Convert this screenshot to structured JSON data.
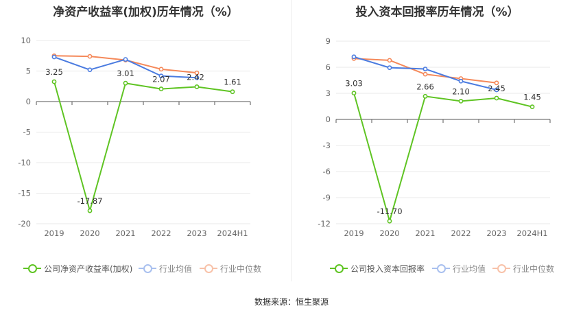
{
  "source": "数据来源：恒生聚源",
  "colors": {
    "company": "#5fc423",
    "average": "#4a7be0",
    "median": "#f5895a",
    "grid": "#e8e8e8",
    "axis": "#555555"
  },
  "chart_data": [
    {
      "type": "line",
      "title": "净资产收益率(加权)历年情况（%）",
      "categories": [
        "2019",
        "2020",
        "2021",
        "2022",
        "2023",
        "2024H1"
      ],
      "ylim": [
        -20,
        10
      ],
      "yticks": [
        10,
        5,
        0,
        -5,
        -10,
        -15,
        -20
      ],
      "ytick_labels": [
        "10",
        "5",
        "0",
        "-5",
        "-10",
        "-15",
        "-20"
      ],
      "grid": true,
      "legend_position": "bottom",
      "series": [
        {
          "name": "公司净资产收益率(加权)",
          "color": "#5fc423",
          "values": [
            3.25,
            -17.87,
            3.01,
            2.07,
            2.42,
            1.61
          ],
          "labels": [
            "3.25",
            "-17.87",
            "3.01",
            "2.07",
            "2.42",
            "1.61"
          ]
        },
        {
          "name": "行业均值",
          "color": "#4a7be0",
          "values": [
            7.3,
            5.2,
            6.9,
            4.2,
            3.9,
            null
          ]
        },
        {
          "name": "行业中位数",
          "color": "#f5895a",
          "values": [
            7.5,
            7.4,
            6.8,
            5.3,
            4.7,
            null
          ]
        }
      ]
    },
    {
      "type": "line",
      "title": "投入资本回报率历年情况（%）",
      "categories": [
        "2019",
        "2020",
        "2021",
        "2022",
        "2023",
        "2024H1"
      ],
      "ylim": [
        -12,
        9
      ],
      "yticks": [
        9,
        6,
        3,
        0,
        -3,
        -6,
        -9,
        -12
      ],
      "ytick_labels": [
        "9",
        "6",
        "3",
        "0",
        "-3",
        "-6",
        "-9",
        "-12"
      ],
      "grid": true,
      "legend_position": "bottom",
      "series": [
        {
          "name": "公司投入资本回报率",
          "color": "#5fc423",
          "values": [
            3.03,
            -11.7,
            2.66,
            2.1,
            2.45,
            1.45
          ],
          "labels": [
            "3.03",
            "-11.70",
            "2.66",
            "2.10",
            "2.45",
            "1.45"
          ]
        },
        {
          "name": "行业均值",
          "color": "#4a7be0",
          "values": [
            7.2,
            5.95,
            5.8,
            4.4,
            3.4,
            null
          ]
        },
        {
          "name": "行业中位数",
          "color": "#f5895a",
          "values": [
            7.0,
            6.8,
            5.2,
            4.7,
            4.2,
            null
          ]
        }
      ]
    }
  ]
}
